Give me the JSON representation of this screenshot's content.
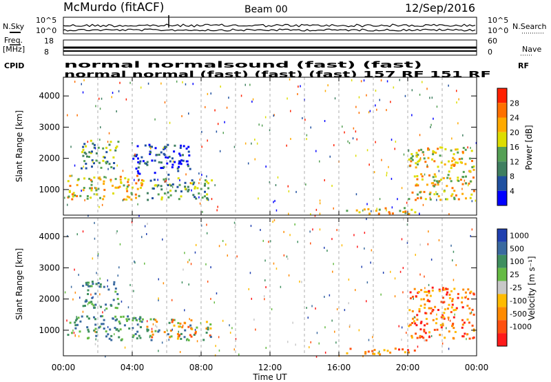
{
  "header": {
    "station": "McMurdo (fitACF)",
    "beam": "Beam 00",
    "date": "12/Sep/2016"
  },
  "top_panel": {
    "left_labels": [
      "N.Sky",
      "Freq.",
      "[MHz]",
      "CPID"
    ],
    "right_labels": [
      "N.Search",
      "Nave",
      "RF"
    ],
    "noise_ticks_left": [
      "10^5",
      "10^0"
    ],
    "noise_ticks_right": [
      "10^5",
      "10^0"
    ],
    "freq_ticks": [
      "18",
      "8"
    ],
    "nave_ticks": [
      "60",
      "0"
    ],
    "cpid_rows": [
      "normal normalsound (fast) (fast)",
      "normal normal (fast) (fast) (fast) 157 RF 151 RF"
    ]
  },
  "colors": {
    "power": [
      "#0000ff",
      "#2050a0",
      "#3f7f60",
      "#55a055",
      "#dddd00",
      "#ffaa00",
      "#ff7000",
      "#ff2000"
    ],
    "velocity": [
      "#2040b0",
      "#3a6aa0",
      "#3f8f5f",
      "#66bb44",
      "#c8c8c8",
      "#ffbb00",
      "#ff8a00",
      "#ff5010",
      "#ff1a1a"
    ]
  },
  "chart_data": [
    {
      "type": "heatmap",
      "title": "",
      "xlabel": "",
      "ylabel": "Slant Range [km]",
      "x_range": [
        "00:00",
        "24:00"
      ],
      "ylim": [
        180,
        4600
      ],
      "x_ticks": [
        "00:00",
        "04:00",
        "08:00",
        "12:00",
        "16:00",
        "20:00",
        "00:00"
      ],
      "y_ticks": [
        1000,
        2000,
        3000,
        4000
      ],
      "colorbar": {
        "label": "Power [dB]",
        "ticks": [
          4,
          8,
          12,
          16,
          20,
          24,
          28
        ],
        "range": [
          0,
          30
        ]
      },
      "regions": [
        {
          "x": [
            0.2,
            4.6
          ],
          "y": [
            700,
            1500
          ],
          "level": "high"
        },
        {
          "x": [
            4.8,
            8.6
          ],
          "y": [
            700,
            1400
          ],
          "level": "medium"
        },
        {
          "x": [
            1.0,
            3.2
          ],
          "y": [
            1700,
            2600
          ],
          "level": "medium"
        },
        {
          "x": [
            4.0,
            7.4
          ],
          "y": [
            1500,
            2500
          ],
          "level": "low"
        },
        {
          "x": [
            16.4,
            20.5
          ],
          "y": [
            250,
            450
          ],
          "level": "high"
        },
        {
          "x": [
            20.0,
            23.8
          ],
          "y": [
            700,
            2400
          ],
          "level": "high"
        }
      ]
    },
    {
      "type": "heatmap",
      "title": "",
      "xlabel": "Time UT",
      "ylabel": "Slant Range [km]",
      "x_range": [
        "00:00",
        "24:00"
      ],
      "ylim": [
        180,
        4600
      ],
      "x_ticks": [
        "00:00",
        "04:00",
        "08:00",
        "12:00",
        "16:00",
        "20:00",
        "00:00"
      ],
      "y_ticks": [
        1000,
        2000,
        3000,
        4000
      ],
      "colorbar": {
        "label": "Velocity [m s⁻¹]",
        "ticks": [
          1000,
          500,
          100,
          25,
          -25,
          -100,
          -500,
          -1000
        ]
      },
      "regions": [
        {
          "x": [
            0.2,
            4.6
          ],
          "y": [
            700,
            1500
          ],
          "sign": "positive"
        },
        {
          "x": [
            4.8,
            8.6
          ],
          "y": [
            700,
            1400
          ],
          "sign": "mixed"
        },
        {
          "x": [
            1.0,
            3.2
          ],
          "y": [
            1700,
            2600
          ],
          "sign": "positive"
        },
        {
          "x": [
            16.4,
            20.5
          ],
          "y": [
            250,
            450
          ],
          "sign": "negative"
        },
        {
          "x": [
            20.0,
            23.8
          ],
          "y": [
            700,
            2400
          ],
          "sign": "negative"
        }
      ]
    }
  ]
}
